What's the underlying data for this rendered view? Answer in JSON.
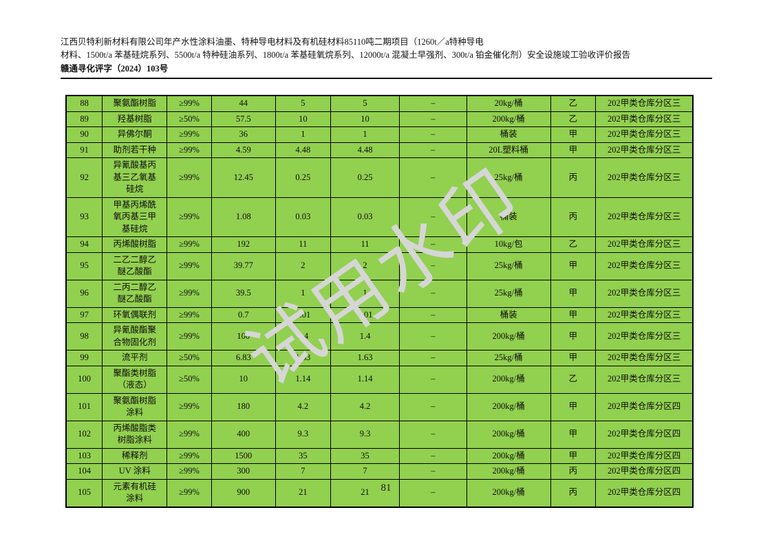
{
  "colors": {
    "cell_green": "#92d050",
    "grid_line": "#000000",
    "watermark_gray": "#d6d6d6"
  },
  "header": {
    "line1": "江西贝特利新材料有限公司年产水性涂料油墨、特种导电材料及有机硅材料85110吨二期项目（1260t／a特种导电",
    "line2": "材料、1500t/a 苯基硅烷系列、5500t/a 特种硅油系列、1800t/a 苯基硅氧烷系列、12000t/a 混凝土早强剂、300t/a 铂金催化剂）安全设施竣工验收评价报告",
    "doc_number": "赣通寻化评字（2024）103号"
  },
  "watermark": {
    "text": "试用水印"
  },
  "footer": {
    "page_number": "81"
  },
  "table": {
    "column_keys": [
      "no",
      "name",
      "purity",
      "storage",
      "qty1",
      "qty2",
      "dash",
      "package",
      "category",
      "location"
    ],
    "rows": [
      {
        "no": "88",
        "name": "聚氨酯树脂",
        "purity": "≥99%",
        "storage": "44",
        "qty1": "5",
        "qty2": "5",
        "dash": "–",
        "package": "20kg/桶",
        "category": "乙",
        "location": "202甲类仓库分区三"
      },
      {
        "no": "89",
        "name": "羟基树脂",
        "purity": "≥50%",
        "storage": "57.5",
        "qty1": "10",
        "qty2": "10",
        "dash": "–",
        "package": "200kg/桶",
        "category": "乙",
        "location": "202甲类仓库分区三"
      },
      {
        "no": "90",
        "name": "异佛尔酮",
        "purity": "≥99%",
        "storage": "36",
        "qty1": "1",
        "qty2": "1",
        "dash": "–",
        "package": "桶装",
        "category": "甲",
        "location": "202甲类仓库分区三"
      },
      {
        "no": "91",
        "name": "助剂若干种",
        "purity": "≥99%",
        "storage": "4.59",
        "qty1": "4.48",
        "qty2": "4.48",
        "dash": "–",
        "package": "20L塑料桶",
        "category": "甲",
        "location": "202甲类仓库分区三"
      },
      {
        "no": "92",
        "name": "异氰酸基丙基三乙氧基硅烷",
        "purity": "≥99%",
        "storage": "12.45",
        "qty1": "0.25",
        "qty2": "0.25",
        "dash": "–",
        "package": "25kg/桶",
        "category": "丙",
        "location": "202甲类仓库分区三"
      },
      {
        "no": "93",
        "name": "甲基丙烯酰氧丙基三甲基硅烷",
        "purity": "≥99%",
        "storage": "1.08",
        "qty1": "0.03",
        "qty2": "0.03",
        "dash": "–",
        "package": "桶装",
        "category": "丙",
        "location": "202甲类仓库分区三"
      },
      {
        "no": "94",
        "name": "丙烯酸树脂",
        "purity": "≥99%",
        "storage": "192",
        "qty1": "11",
        "qty2": "11",
        "dash": "–",
        "package": "10kg/包",
        "category": "乙",
        "location": "202甲类仓库分区三"
      },
      {
        "no": "95",
        "name": "二乙二醇乙醚乙酸酯",
        "purity": "≥99%",
        "storage": "39.77",
        "qty1": "2",
        "qty2": "2",
        "dash": "–",
        "package": "25kg/桶",
        "category": "甲",
        "location": "202甲类仓库分区三"
      },
      {
        "no": "96",
        "name": "二丙二醇乙醚乙酸酯",
        "purity": "≥99%",
        "storage": "39.5",
        "qty1": "1",
        "qty2": "1",
        "dash": "–",
        "package": "25kg/桶",
        "category": "甲",
        "location": "202甲类仓库分区三"
      },
      {
        "no": "97",
        "name": "环氧偶联剂",
        "purity": "≥99%",
        "storage": "0.7",
        "qty1": "0.01",
        "qty2": "0.01",
        "dash": "–",
        "package": "桶装",
        "category": "甲",
        "location": "202甲类仓库分区三"
      },
      {
        "no": "98",
        "name": "异氰酸酯聚合物固化剂",
        "purity": "≥99%",
        "storage": "100",
        "qty1": "1.4",
        "qty2": "1.4",
        "dash": "–",
        "package": "200kg/桶",
        "category": "甲",
        "location": "202甲类仓库分区三"
      },
      {
        "no": "99",
        "name": "流平剂",
        "purity": "≥50%",
        "storage": "6.83",
        "qty1": "1.63",
        "qty2": "1.63",
        "dash": "–",
        "package": "25kg/桶",
        "category": "甲",
        "location": "202甲类仓库分区三"
      },
      {
        "no": "100",
        "name": "聚酯类树脂（液态）",
        "purity": "≥50%",
        "storage": "10",
        "qty1": "1.14",
        "qty2": "1.14",
        "dash": "–",
        "package": "200kg/桶",
        "category": "乙",
        "location": "202甲类仓库分区三"
      },
      {
        "no": "101",
        "name": "聚氨酯树脂涂料",
        "purity": "≥99%",
        "storage": "180",
        "qty1": "4.2",
        "qty2": "4.2",
        "dash": "–",
        "package": "200kg/桶",
        "category": "甲",
        "location": "202甲类仓库分区四"
      },
      {
        "no": "102",
        "name": "丙烯酸脂类树脂涂料",
        "purity": "≥99%",
        "storage": "400",
        "qty1": "9.3",
        "qty2": "9.3",
        "dash": "–",
        "package": "200kg/桶",
        "category": "甲",
        "location": "202甲类仓库分区四"
      },
      {
        "no": "103",
        "name": "稀释剂",
        "purity": "≥99%",
        "storage": "1500",
        "qty1": "35",
        "qty2": "35",
        "dash": "–",
        "package": "200kg/桶",
        "category": "甲",
        "location": "202甲类仓库分区四"
      },
      {
        "no": "104",
        "name": "UV 涂料",
        "purity": "≥99%",
        "storage": "300",
        "qty1": "7",
        "qty2": "7",
        "dash": "–",
        "package": "200kg/桶",
        "category": "丙",
        "location": "202甲类仓库分区四"
      },
      {
        "no": "105",
        "name": "元素有机硅涂料",
        "purity": "≥99%",
        "storage": "900",
        "qty1": "21",
        "qty2": "21",
        "dash": "–",
        "package": "200kg/桶",
        "category": "丙",
        "location": "202甲类仓库分区四"
      }
    ]
  }
}
